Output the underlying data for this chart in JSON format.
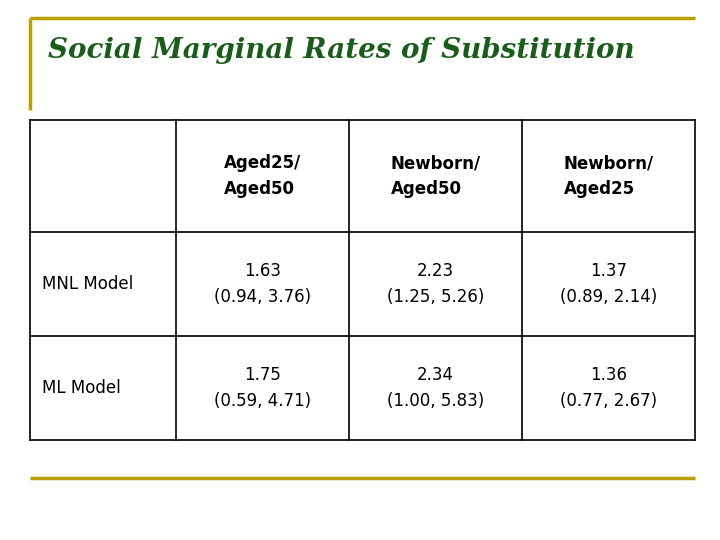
{
  "title": "Social Marginal Rates of Substitution",
  "title_color": "#1a5c1a",
  "title_fontsize": 20,
  "bg_color": "#ffffff",
  "gold_color": "#B8A000",
  "table_border_color": "#000000",
  "col_headers": [
    "Aged25/\nAged50",
    "Newborn/\nAged50",
    "Newborn/\nAged25"
  ],
  "row_headers": [
    "MNL Model",
    "ML Model"
  ],
  "cell_data": [
    [
      "1.63\n(0.94, 3.76)",
      "2.23\n(1.25, 5.26)",
      "1.37\n(0.89, 2.14)"
    ],
    [
      "1.75\n(0.59, 4.71)",
      "2.34\n(1.00, 5.83)",
      "1.36\n(0.77, 2.67)"
    ]
  ],
  "header_fontsize": 12,
  "cell_fontsize": 12,
  "row_header_fontsize": 12
}
